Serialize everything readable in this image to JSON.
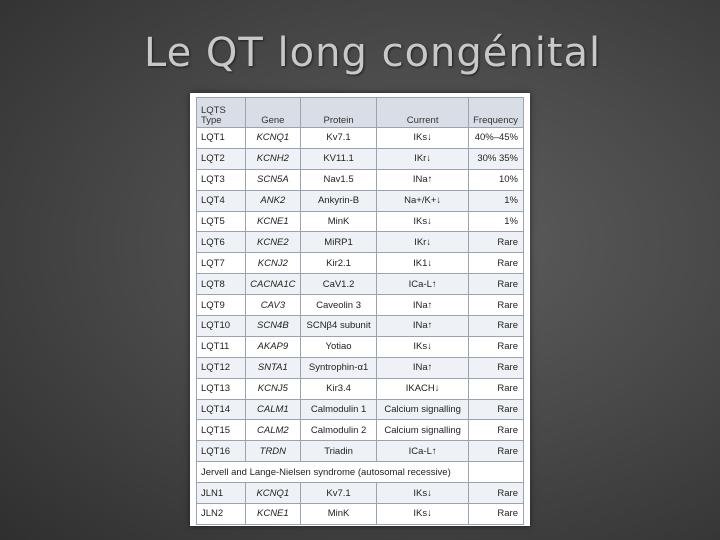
{
  "title": "Le QT long congénital",
  "table": {
    "headers": [
      "LQTS\nType",
      "Gene",
      "Protein",
      "Current",
      "Frequency"
    ],
    "rows": [
      [
        "LQT1",
        "KCNQ1",
        "Kv7.1",
        "IKs↓",
        "40%–45%"
      ],
      [
        "LQT2",
        "KCNH2",
        "KV11.1",
        "IKr↓",
        "30%  35%"
      ],
      [
        "LQT3",
        "SCN5A",
        "Nav1.5",
        "INa↑",
        "10%"
      ],
      [
        "LQT4",
        "ANK2",
        "Ankyrin-B",
        "Na+/K+↓",
        "1%"
      ],
      [
        "LQT5",
        "KCNE1",
        "MinK",
        "IKs↓",
        "1%"
      ],
      [
        "LQT6",
        "KCNE2",
        "MiRP1",
        "IKr↓",
        "Rare"
      ],
      [
        "LQT7",
        "KCNJ2",
        "Kir2.1",
        "IK1↓",
        "Rare"
      ],
      [
        "LQT8",
        "CACNA1C",
        "CaV1.2",
        "ICa-L↑",
        "Rare"
      ],
      [
        "LQT9",
        "CAV3",
        "Caveolin 3",
        "INa↑",
        "Rare"
      ],
      [
        "LQT10",
        "SCN4B",
        "SCNβ4 subunit",
        "INa↑",
        "Rare"
      ],
      [
        "LQT11",
        "AKAP9",
        "Yotiao",
        "IKs↓",
        "Rare"
      ],
      [
        "LQT12",
        "SNTA1",
        "Syntrophin-α1",
        "INa↑",
        "Rare"
      ],
      [
        "LQT13",
        "KCNJ5",
        "Kir3.4",
        "IKACH↓",
        "Rare"
      ],
      [
        "LQT14",
        "CALM1",
        "Calmodulin 1",
        "Calcium signalling",
        "Rare"
      ],
      [
        "LQT15",
        "CALM2",
        "Calmodulin 2",
        "Calcium signalling",
        "Rare"
      ],
      [
        "LQT16",
        "TRDN",
        "Triadin",
        "ICa-L↑",
        "Rare"
      ]
    ],
    "section_label": "Jervell and Lange-Nielsen syndrome (autosomal recessive)",
    "jln_rows": [
      [
        "JLN1",
        "KCNQ1",
        "Kv7.1",
        "IKs↓",
        "Rare"
      ],
      [
        "JLN2",
        "KCNE1",
        "MinK",
        "IKs↓",
        "Rare"
      ]
    ]
  }
}
